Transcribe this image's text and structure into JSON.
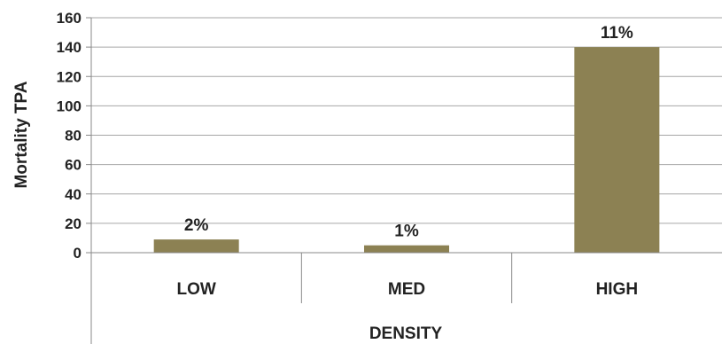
{
  "chart_data": {
    "type": "bar",
    "title": "",
    "xlabel": "DENSITY",
    "ylabel": "Mortality TPA",
    "categories": [
      "LOW",
      "MED",
      "HIGH"
    ],
    "values": [
      9,
      5,
      140
    ],
    "data_labels": [
      "2%",
      "1%",
      "11%"
    ],
    "ylim": [
      0,
      160
    ],
    "yticks": [
      0,
      20,
      40,
      60,
      80,
      100,
      120,
      140,
      160
    ],
    "grid": true,
    "legend": "none",
    "colors": {
      "bar": "#8c8153",
      "grid": "#a6a6a6",
      "axis": "#888888"
    }
  }
}
